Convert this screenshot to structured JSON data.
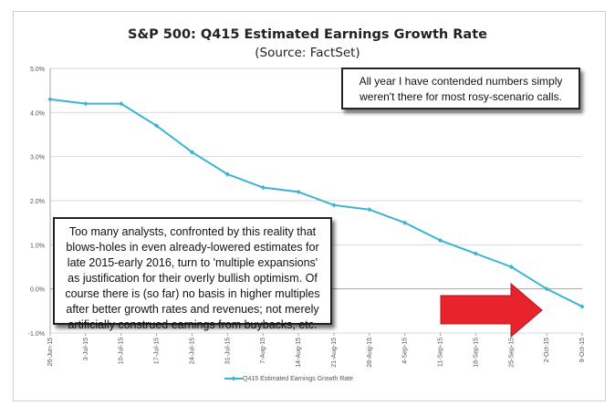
{
  "title": "S&P 500: Q415 Estimated Earnings Growth Rate",
  "subtitle": "(Source: FactSet)",
  "annotations": {
    "top_right": "All year I have contended numbers simply weren't there for most rosy-scenario calls.",
    "left": "Too many analysts, confronted by this reality that blows-holes in even already-lowered estimates for late 2015-early 2016, turn to 'multiple expansions' as justification for their overly bullish optimism. Of course there is (so far) no basis in higher multiples after better growth rates and revenues; not merely artificially construed earnings from buybacks, etc."
  },
  "colors": {
    "series": "#3bb3d4",
    "arrow": "#e8232b",
    "grid": "#d9d9d9",
    "axis": "#a6a6a6"
  },
  "chart_data": {
    "type": "line",
    "x": [
      "26-Jun-15",
      "3-Jul-15",
      "10-Jul-15",
      "17-Jul-15",
      "24-Jul-15",
      "31-Jul-15",
      "7-Aug-15",
      "14-Aug-15",
      "21-Aug-15",
      "28-Aug-15",
      "4-Sep-15",
      "11-Sep-15",
      "18-Sep-15",
      "25-Sep-15",
      "2-Oct-15",
      "9-Oct-15"
    ],
    "series": [
      {
        "name": "Q415 Estimated Earnings Growth Rate",
        "values": [
          4.3,
          4.2,
          4.2,
          3.7,
          3.1,
          2.6,
          2.3,
          2.2,
          1.9,
          1.8,
          1.5,
          1.1,
          0.8,
          0.5,
          0.0,
          -0.4
        ]
      }
    ],
    "ylim": [
      -1.0,
      5.0
    ],
    "yticks": [
      "-1.0%",
      "0.0%",
      "1.0%",
      "2.0%",
      "3.0%",
      "4.0%",
      "5.0%"
    ],
    "ytick_values": [
      -1,
      0,
      1,
      2,
      3,
      4,
      5
    ],
    "grid": true,
    "legend": "bottom"
  }
}
